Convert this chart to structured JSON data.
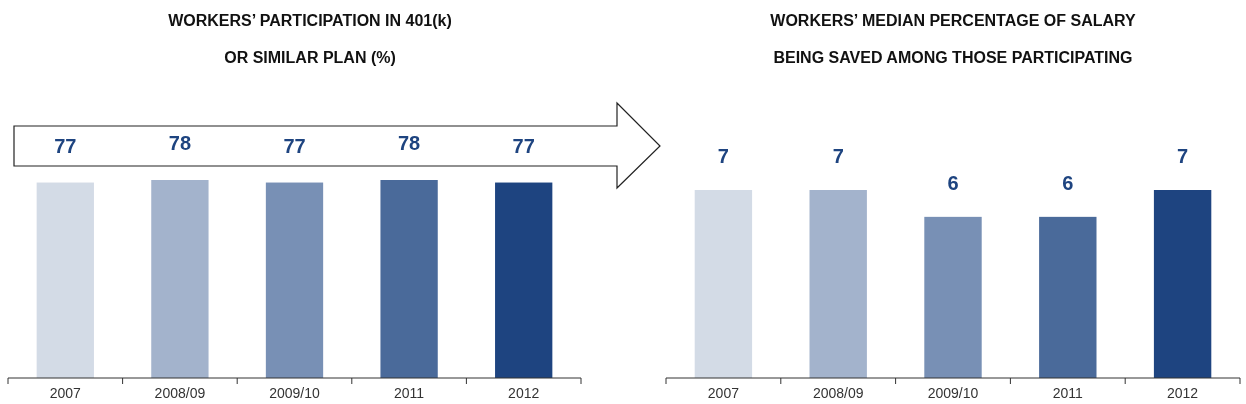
{
  "chart_data": [
    {
      "type": "bar",
      "title": "WORKERS’ PARTICIPATION IN 401(k)\nOR SIMILAR PLAN (%)",
      "categories": [
        "2007",
        "2008/09",
        "2009/10",
        "2011",
        "2012"
      ],
      "values": [
        77,
        78,
        77,
        78,
        77
      ],
      "colors": [
        "#d3dbe6",
        "#a3b3cc",
        "#7890b5",
        "#4a6a9a",
        "#1e4480"
      ],
      "data_labels": true
    },
    {
      "type": "bar",
      "title": "WORKERS’ MEDIAN PERCENTAGE OF SALARY\nBEING SAVED AMONG THOSE PARTICIPATING",
      "categories": [
        "2007",
        "2008/09",
        "2009/10",
        "2011",
        "2012"
      ],
      "values": [
        7,
        7,
        6,
        6,
        7
      ],
      "colors": [
        "#d3dbe6",
        "#a3b3cc",
        "#7890b5",
        "#4a6a9a",
        "#1e4480"
      ],
      "data_labels": true
    }
  ]
}
